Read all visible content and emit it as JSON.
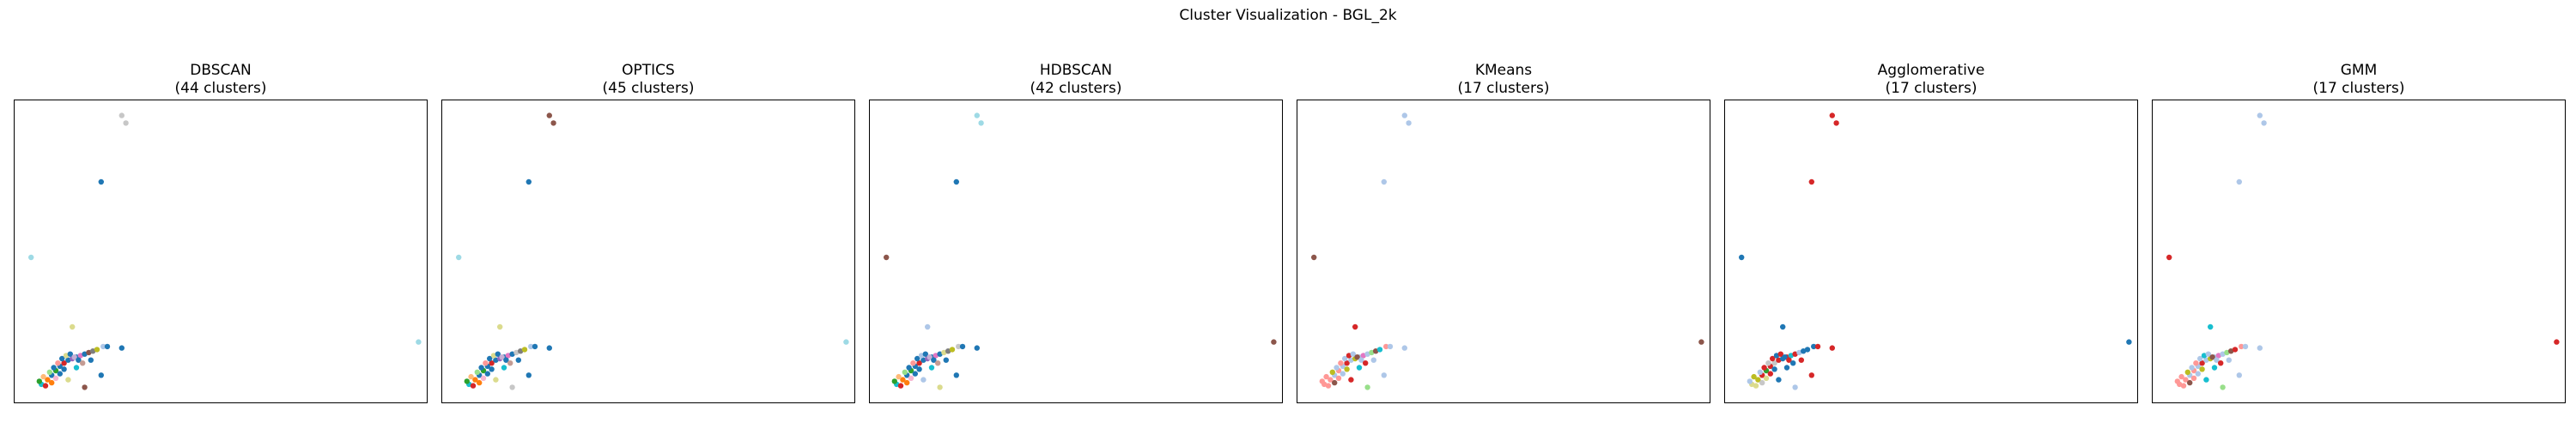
{
  "chart_data": {
    "type": "scatter",
    "title": "Cluster Visualization - BGL_2k",
    "xlim": [
      0,
      100
    ],
    "ylim": [
      0,
      100
    ],
    "axes_visible": false,
    "grid": false,
    "points": [
      {
        "x": 26.0,
        "y": 95.0,
        "g": 0
      },
      {
        "x": 27.0,
        "y": 92.5,
        "g": 0
      },
      {
        "x": 21.0,
        "y": 73.0,
        "g": 1
      },
      {
        "x": 4.0,
        "y": 48.0,
        "g": 2
      },
      {
        "x": 98.0,
        "y": 20.0,
        "g": 2
      },
      {
        "x": 14.0,
        "y": 25.0,
        "g": 3
      },
      {
        "x": 26.0,
        "y": 18.0,
        "g": 1
      },
      {
        "x": 21.0,
        "y": 9.0,
        "g": 1
      },
      {
        "x": 17.0,
        "y": 5.0,
        "g": 4
      },
      {
        "x": 13.0,
        "y": 7.5,
        "g": 3
      },
      {
        "x": 6.5,
        "y": 6.0,
        "g": 5
      },
      {
        "x": 8.0,
        "y": 7.5,
        "g": 6
      },
      {
        "x": 9.0,
        "y": 9.0,
        "g": 1
      },
      {
        "x": 10.0,
        "y": 10.5,
        "g": 7
      },
      {
        "x": 11.0,
        "y": 12.0,
        "g": 1
      },
      {
        "x": 12.0,
        "y": 13.0,
        "g": 8
      },
      {
        "x": 13.0,
        "y": 14.0,
        "g": 1
      },
      {
        "x": 14.0,
        "y": 14.5,
        "g": 9
      },
      {
        "x": 15.0,
        "y": 15.0,
        "g": 1
      },
      {
        "x": 16.0,
        "y": 15.5,
        "g": 10
      },
      {
        "x": 17.0,
        "y": 16.0,
        "g": 1
      },
      {
        "x": 18.0,
        "y": 16.5,
        "g": 4
      },
      {
        "x": 19.0,
        "y": 17.0,
        "g": 11
      },
      {
        "x": 20.0,
        "y": 17.5,
        "g": 12
      },
      {
        "x": 21.5,
        "y": 18.5,
        "g": 13
      },
      {
        "x": 22.5,
        "y": 18.5,
        "g": 1
      },
      {
        "x": 7.0,
        "y": 8.5,
        "g": 14
      },
      {
        "x": 8.5,
        "y": 10.0,
        "g": 15
      },
      {
        "x": 9.5,
        "y": 11.5,
        "g": 1
      },
      {
        "x": 10.5,
        "y": 13.0,
        "g": 16
      },
      {
        "x": 11.5,
        "y": 14.5,
        "g": 1
      },
      {
        "x": 12.5,
        "y": 15.5,
        "g": 3
      },
      {
        "x": 13.5,
        "y": 16.0,
        "g": 1
      },
      {
        "x": 14.5,
        "y": 15.0,
        "g": 17
      },
      {
        "x": 15.5,
        "y": 14.0,
        "g": 1
      },
      {
        "x": 16.5,
        "y": 13.0,
        "g": 18
      },
      {
        "x": 10.0,
        "y": 8.0,
        "g": 19
      },
      {
        "x": 11.0,
        "y": 9.5,
        "g": 1
      },
      {
        "x": 12.0,
        "y": 11.0,
        "g": 20
      },
      {
        "x": 6.0,
        "y": 7.0,
        "g": 21
      },
      {
        "x": 9.0,
        "y": 6.5,
        "g": 22
      },
      {
        "x": 15.0,
        "y": 11.5,
        "g": 23
      },
      {
        "x": 18.5,
        "y": 14.0,
        "g": 1
      },
      {
        "x": 7.5,
        "y": 5.5,
        "g": 24
      }
    ],
    "panels": [
      {
        "name": "DBSCAN",
        "subtitle": "(44 clusters)",
        "palette": [
          "#c7c7c7",
          "#1f77b4",
          "#9edae5",
          "#dbdb8d",
          "#8c564b",
          "#17becf",
          "#ff7f0e",
          "#2ca02c",
          "#d62728",
          "#9467bd",
          "#e377c2",
          "#7f7f7f",
          "#bcbd22",
          "#aec7e8",
          "#ffbb78",
          "#98df8a",
          "#ff9896",
          "#c5b0d5",
          "#c49c94",
          "#f7b6d2",
          "#1f77b4",
          "#2ca02c",
          "#ff7f0e",
          "#17becf",
          "#d62728"
        ]
      },
      {
        "name": "OPTICS",
        "subtitle": "(45 clusters)",
        "palette": [
          "#8c564b",
          "#1f77b4",
          "#9edae5",
          "#dbdb8d",
          "#c7c7c7",
          "#17becf",
          "#ff7f0e",
          "#2ca02c",
          "#d62728",
          "#9467bd",
          "#e377c2",
          "#7f7f7f",
          "#bcbd22",
          "#aec7e8",
          "#ffbb78",
          "#98df8a",
          "#ff9896",
          "#c5b0d5",
          "#c49c94",
          "#f7b6d2",
          "#1f77b4",
          "#2ca02c",
          "#ff7f0e",
          "#17becf",
          "#d62728"
        ]
      },
      {
        "name": "HDBSCAN",
        "subtitle": "(42 clusters)",
        "palette": [
          "#9edae5",
          "#1f77b4",
          "#8c564b",
          "#aec7e8",
          "#dbdb8d",
          "#17becf",
          "#ff7f0e",
          "#2ca02c",
          "#d62728",
          "#9467bd",
          "#e377c2",
          "#7f7f7f",
          "#bcbd22",
          "#c7c7c7",
          "#ffbb78",
          "#98df8a",
          "#ff9896",
          "#c5b0d5",
          "#c49c94",
          "#f7b6d2",
          "#1f77b4",
          "#2ca02c",
          "#ff7f0e",
          "#17becf",
          "#d62728"
        ]
      },
      {
        "name": "KMeans",
        "subtitle": "(17 clusters)",
        "palette": [
          "#aec7e8",
          "#aec7e8",
          "#8c564b",
          "#d62728",
          "#98df8a",
          "#ff9896",
          "#ff9896",
          "#ff9896",
          "#d62728",
          "#bcbd22",
          "#e377c2",
          "#8c564b",
          "#17becf",
          "#ff9896",
          "#ff9896",
          "#bcbd22",
          "#ff9896",
          "#8c564b",
          "#d62728",
          "#ff9896",
          "#bcbd22",
          "#ff9896",
          "#8c564b",
          "#17becf",
          "#ff9896"
        ]
      },
      {
        "name": "Agglomerative",
        "subtitle": "(17 clusters)",
        "palette": [
          "#d62728",
          "#d62728",
          "#1f77b4",
          "#1f77b4",
          "#aec7e8",
          "#dbdb8d",
          "#bcbd22",
          "#2ca02c",
          "#c7c7c7",
          "#1f77b4",
          "#17becf",
          "#1f77b4",
          "#1f77b4",
          "#1f77b4",
          "#bcbd22",
          "#aec7e8",
          "#c7c7c7",
          "#1f77b4",
          "#1f77b4",
          "#dbdb8d",
          "#1f77b4",
          "#aec7e8",
          "#c7c7c7",
          "#1f77b4",
          "#dbdb8d"
        ]
      },
      {
        "name": "GMM",
        "subtitle": "(17 clusters)",
        "palette": [
          "#aec7e8",
          "#aec7e8",
          "#d62728",
          "#17becf",
          "#98df8a",
          "#ff9896",
          "#ff9896",
          "#ff9896",
          "#d62728",
          "#bcbd22",
          "#e377c2",
          "#8c564b",
          "#d62728",
          "#ff9896",
          "#ff9896",
          "#bcbd22",
          "#ff9896",
          "#8c564b",
          "#d62728",
          "#ff9896",
          "#bcbd22",
          "#ff9896",
          "#8c564b",
          "#17becf",
          "#ff9896"
        ]
      }
    ]
  }
}
